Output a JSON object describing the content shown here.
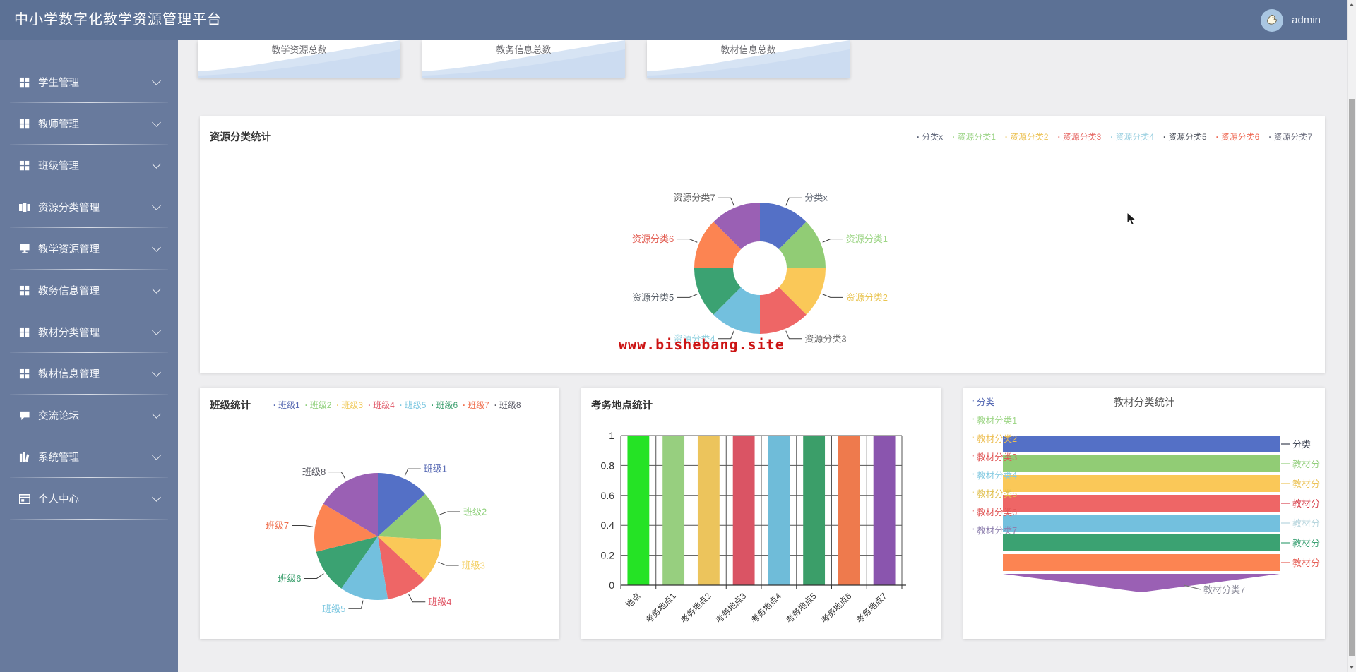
{
  "header": {
    "title": "中小学数字化教学资源管理平台",
    "user": "admin"
  },
  "sidebar": {
    "items": [
      {
        "name": "student-management",
        "label": "学生管理",
        "icon": "grid"
      },
      {
        "name": "teacher-management",
        "label": "教师管理",
        "icon": "grid"
      },
      {
        "name": "class-management",
        "label": "班级管理",
        "icon": "grid"
      },
      {
        "name": "resource-category-management",
        "label": "资源分类管理",
        "icon": "columns"
      },
      {
        "name": "teaching-resource-management",
        "label": "教学资源管理",
        "icon": "screen"
      },
      {
        "name": "edu-info-management",
        "label": "教务信息管理",
        "icon": "grid"
      },
      {
        "name": "textbook-category-management",
        "label": "教材分类管理",
        "icon": "grid"
      },
      {
        "name": "textbook-info-management",
        "label": "教材信息管理",
        "icon": "grid"
      },
      {
        "name": "forum",
        "label": "交流论坛",
        "icon": "chat"
      },
      {
        "name": "system-management",
        "label": "系统管理",
        "icon": "book"
      },
      {
        "name": "personal-center",
        "label": "个人中心",
        "icon": "card"
      }
    ]
  },
  "stat_cards": [
    {
      "label": "教学资源总数"
    },
    {
      "label": "教务信息总数"
    },
    {
      "label": "教材信息总数"
    }
  ],
  "watermark": "www.bishebang.site",
  "chart_data": [
    {
      "id": "resource-donut",
      "type": "pie",
      "donut": true,
      "title": "资源分类统计",
      "labels": [
        "分类x",
        "资源分类1",
        "资源分类2",
        "资源分类3",
        "资源分类4",
        "资源分类5",
        "资源分类6",
        "资源分类7"
      ],
      "values": [
        1,
        1,
        1,
        1,
        1,
        1,
        1,
        1
      ],
      "colors": [
        "#5470c6",
        "#91cc75",
        "#fac858",
        "#ee6666",
        "#73c0de",
        "#3ba272",
        "#fc8452",
        "#9a60b4"
      ],
      "label_colors": [
        "#5c6370",
        "#9ed687",
        "#e9c450",
        "#6b6b6b",
        "#8fd0df",
        "#565d66",
        "#e25b50",
        "#595959"
      ],
      "legend": [
        {
          "label": "分类x",
          "color": "#5b6276"
        },
        {
          "label": "资源分类1",
          "color": "#9ad384"
        },
        {
          "label": "资源分类2",
          "color": "#ecc254"
        },
        {
          "label": "资源分类3",
          "color": "#e66a66"
        },
        {
          "label": "资源分类4",
          "color": "#9fd2e2"
        },
        {
          "label": "资源分类5",
          "color": "#50555f"
        },
        {
          "label": "资源分类6",
          "color": "#ef6a55"
        },
        {
          "label": "资源分类7",
          "color": "#6e7080"
        }
      ]
    },
    {
      "id": "class-pie",
      "type": "pie",
      "donut": false,
      "title": "班级统计",
      "labels": [
        "班级1",
        "班级2",
        "班级3",
        "班级4",
        "班级5",
        "班级6",
        "班级7",
        "班级8"
      ],
      "values": [
        48,
        45,
        40,
        38,
        44,
        41,
        45,
        59
      ],
      "colors": [
        "#5470c6",
        "#91cc75",
        "#fac858",
        "#ee6666",
        "#73c0de",
        "#3ba272",
        "#fc8452",
        "#9a60b4"
      ],
      "label_colors": [
        "#5b6db6",
        "#8fd07c",
        "#f4cf62",
        "#e05666",
        "#7cc7e0",
        "#3da06f",
        "#f0704f",
        "#55555f"
      ],
      "legend": [
        {
          "label": "班级1",
          "color": "#5668b1"
        },
        {
          "label": "班级2",
          "color": "#8fd07c"
        },
        {
          "label": "班级3",
          "color": "#f0ca5e"
        },
        {
          "label": "班级4",
          "color": "#e05666"
        },
        {
          "label": "班级5",
          "color": "#7cc7e0"
        },
        {
          "label": "班级6",
          "color": "#3da06f"
        },
        {
          "label": "班级7",
          "color": "#f0704f"
        },
        {
          "label": "班级8",
          "color": "#5a5a66"
        }
      ]
    },
    {
      "id": "exam-bar",
      "type": "bar",
      "title": "考务地点统计",
      "categories": [
        "地点",
        "考务地点1",
        "考务地点2",
        "考务地点3",
        "考务地点4",
        "考务地点5",
        "考务地点6",
        "考务地点7"
      ],
      "values": [
        1,
        1,
        1,
        1,
        1,
        1,
        1,
        1
      ],
      "ylim": [
        0,
        1
      ],
      "yticks": [
        0,
        0.2,
        0.4,
        0.6,
        0.8,
        1
      ],
      "colors": [
        "#25e325",
        "#97cf7f",
        "#ecc45c",
        "#da5464",
        "#6fbcd9",
        "#3b9e69",
        "#ee7a4d",
        "#8a55ae"
      ],
      "grid": true
    },
    {
      "id": "textbook-funnel",
      "type": "funnel",
      "title": "教材分类统计",
      "values": [
        1,
        1,
        1,
        1,
        1,
        1,
        1,
        1
      ],
      "colors": [
        "#5470c6",
        "#91cc75",
        "#fac858",
        "#ee6666",
        "#73c0de",
        "#3ba272",
        "#fc8452",
        "#9a60b4"
      ],
      "legend": [
        {
          "label": "分类",
          "color": "#4a5fae"
        },
        {
          "label": "教材分类1",
          "color": "#9ed687"
        },
        {
          "label": "教材分类2",
          "color": "#edbe51"
        },
        {
          "label": "教材分类3",
          "color": "#e05656"
        },
        {
          "label": "教材分类4",
          "color": "#86cbe2"
        },
        {
          "label": "教材分类5",
          "color": "#e0c04e"
        },
        {
          "label": "教材分类6",
          "color": "#e05656"
        },
        {
          "label": "教材分类7",
          "color": "#8d7fae"
        }
      ],
      "right_labels": [
        {
          "label": "分类",
          "color": "#3c4252"
        },
        {
          "label": "教材分",
          "color": "#93cf7c"
        },
        {
          "label": "教材分",
          "color": "#ecc45a"
        },
        {
          "label": "教材分",
          "color": "#d8444f"
        },
        {
          "label": "教材分",
          "color": "#b8d6de"
        },
        {
          "label": "教材分",
          "color": "#3fa377"
        },
        {
          "label": "教材分",
          "color": "#e66058"
        },
        {
          "label": "教材分类7",
          "color": "#8b8b99"
        }
      ]
    }
  ]
}
